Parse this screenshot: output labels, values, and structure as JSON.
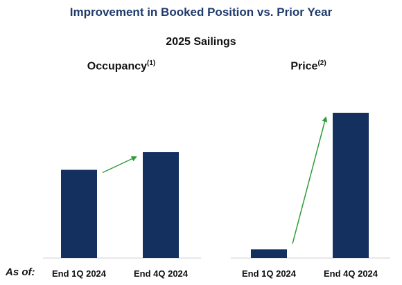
{
  "header": {
    "title": "Improvement in Booked Position vs. Prior Year",
    "subtitle": "2025 Sailings",
    "as_of_label": "As of:"
  },
  "colors": {
    "title": "#1f3a6b",
    "bar": "#14305e",
    "arrow": "#2e9c3a"
  },
  "chart_data": [
    {
      "type": "bar",
      "title": "Occupancy",
      "footnote": "(1)",
      "categories": [
        "End 1Q 2024",
        "End 4Q 2024"
      ],
      "values": [
        100,
        120
      ],
      "annotation": "green arrow from End 1Q 2024 bar to End 4Q 2024 bar",
      "grid": false,
      "legend": "none"
    },
    {
      "type": "bar",
      "title": "Price",
      "footnote": "(2)",
      "categories": [
        "End 1Q 2024",
        "End 4Q 2024"
      ],
      "values": [
        6,
        100
      ],
      "annotation": "green arrow from End 1Q 2024 bar to End 4Q 2024 bar",
      "grid": false,
      "legend": "none"
    }
  ]
}
